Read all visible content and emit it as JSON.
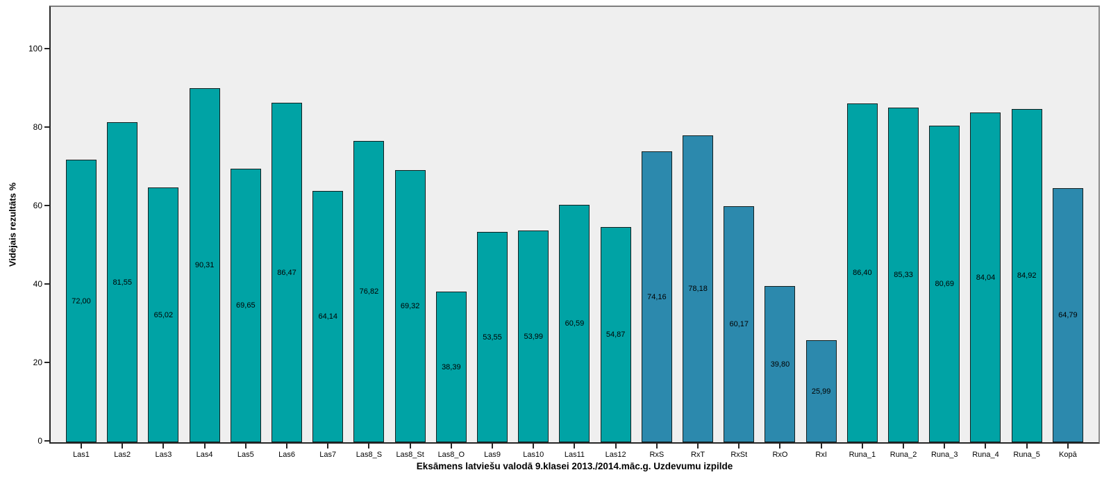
{
  "chart_data": {
    "type": "bar",
    "title": "",
    "xlabel": "Eksāmens latviešu valodā 9.klasei 2013./2014.māc.g. Uzdevumu izpilde",
    "ylabel": "Vidējais rezultāts %",
    "ylim": [
      0,
      100
    ],
    "y_ticks": [
      0,
      20,
      40,
      60,
      80,
      100
    ],
    "grid": "off",
    "legend": "none",
    "plot_background": "#EFEFEF",
    "palette": {
      "teal": "#00A3A5",
      "blue": "#2C89AD"
    },
    "categories": [
      "Las1",
      "Las2",
      "Las3",
      "Las4",
      "Las5",
      "Las6",
      "Las7",
      "Las8_S",
      "Las8_St",
      "Las8_O",
      "Las9",
      "Las10",
      "Las11",
      "Las12",
      "RxS",
      "RxT",
      "RxSt",
      "RxO",
      "RxI",
      "Runa_1",
      "Runa_2",
      "Runa_3",
      "Runa_4",
      "Runa_5",
      "Kopā"
    ],
    "values": [
      72.0,
      81.55,
      65.02,
      90.31,
      69.65,
      86.47,
      64.14,
      76.82,
      69.32,
      38.39,
      53.55,
      53.99,
      60.59,
      54.87,
      74.16,
      78.18,
      60.17,
      39.8,
      25.99,
      86.4,
      85.33,
      80.69,
      84.04,
      84.92,
      64.79
    ],
    "value_labels": [
      "72,00",
      "81,55",
      "65,02",
      "90,31",
      "69,65",
      "86,47",
      "64,14",
      "76,82",
      "69,32",
      "38,39",
      "53,55",
      "53,99",
      "60,59",
      "54,87",
      "74,16",
      "78,18",
      "60,17",
      "39,80",
      "25,99",
      "86,40",
      "85,33",
      "80,69",
      "84,04",
      "84,92",
      "64,79"
    ],
    "bar_colors": [
      "#00A3A5",
      "#00A3A5",
      "#00A3A5",
      "#00A3A5",
      "#00A3A5",
      "#00A3A5",
      "#00A3A5",
      "#00A3A5",
      "#00A3A5",
      "#00A3A5",
      "#00A3A5",
      "#00A3A5",
      "#00A3A5",
      "#00A3A5",
      "#2C89AD",
      "#2C89AD",
      "#2C89AD",
      "#2C89AD",
      "#2C89AD",
      "#00A3A5",
      "#00A3A5",
      "#00A3A5",
      "#00A3A5",
      "#00A3A5",
      "#2C89AD"
    ]
  }
}
